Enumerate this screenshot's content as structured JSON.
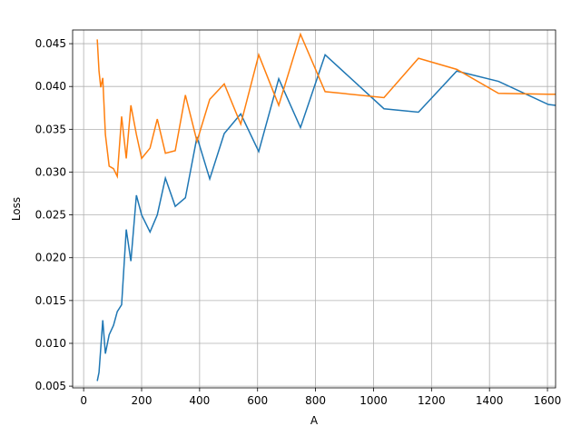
{
  "chart_data": {
    "type": "line",
    "xlabel": "A",
    "ylabel": "Loss",
    "x": [
      47,
      53,
      59,
      66,
      75,
      88,
      103,
      116,
      131,
      147,
      163,
      182,
      200,
      229,
      254,
      282,
      316,
      351,
      391,
      435,
      485,
      542,
      604,
      673,
      748,
      833,
      1036,
      1155,
      1287,
      1431,
      1603,
      1628
    ],
    "series": [
      {
        "color": "#1f77b4",
        "values": [
          0.0056,
          0.0066,
          0.0094,
          0.0127,
          0.0088,
          0.011,
          0.0121,
          0.0137,
          0.0145,
          0.0233,
          0.0196,
          0.0273,
          0.025,
          0.023,
          0.025,
          0.0293,
          0.026,
          0.027,
          0.0341,
          0.0292,
          0.0345,
          0.0368,
          0.0324,
          0.0409,
          0.0352,
          0.0437,
          0.0374,
          0.037,
          0.0418,
          0.0406,
          0.0379,
          0.0378
        ]
      },
      {
        "color": "#ff7f0e",
        "values": [
          0.0455,
          0.0418,
          0.0399,
          0.041,
          0.0344,
          0.0307,
          0.0304,
          0.0295,
          0.0365,
          0.0316,
          0.0378,
          0.0344,
          0.0316,
          0.0328,
          0.0362,
          0.0322,
          0.0325,
          0.039,
          0.0336,
          0.0385,
          0.0403,
          0.0356,
          0.0437,
          0.0378,
          0.0461,
          0.0394,
          0.0387,
          0.0433,
          0.042,
          0.0392,
          0.0391,
          0.0391
        ]
      }
    ],
    "xlim": [
      -38,
      1628
    ],
    "ylim": [
      0.0048,
      0.0466
    ],
    "xticks": [
      0,
      200,
      400,
      600,
      800,
      1000,
      1200,
      1400,
      1600
    ],
    "yticks": [
      0.005,
      {
        "value": 0.01,
        "label": "0.010"
      },
      0.015,
      {
        "value": 0.02,
        "label": "0.020"
      },
      0.025,
      {
        "value": 0.03,
        "label": "0.030"
      },
      0.035,
      {
        "value": 0.04,
        "label": "0.040"
      },
      0.045
    ],
    "grid": true
  }
}
